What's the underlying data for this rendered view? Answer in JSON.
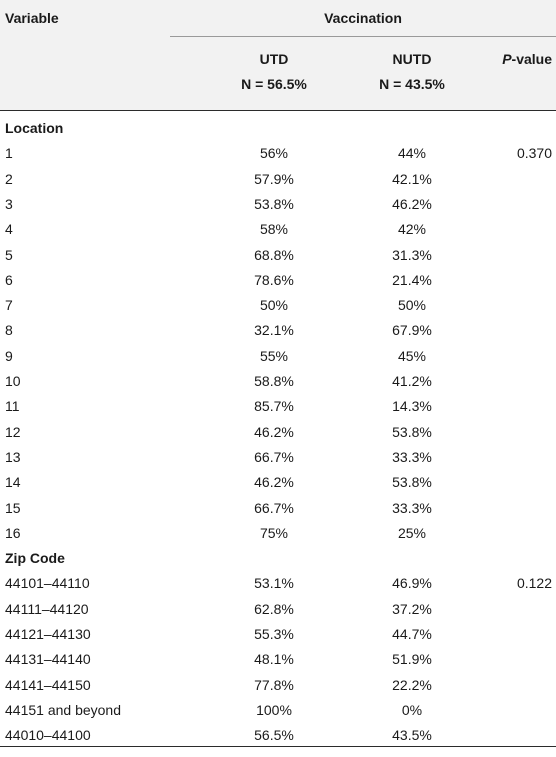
{
  "header": {
    "variable": "Variable",
    "vaccination": "Vaccination",
    "utd_label": "UTD",
    "utd_n": "N = 56.5%",
    "nutd_label": "NUTD",
    "nutd_n": "N = 43.5%",
    "p_italic": "P",
    "p_rest": "-value"
  },
  "sections": [
    {
      "title": "Location",
      "rows": [
        {
          "label": "1",
          "utd": "56%",
          "nutd": "44%",
          "p": "0.370"
        },
        {
          "label": "2",
          "utd": "57.9%",
          "nutd": "42.1%",
          "p": ""
        },
        {
          "label": "3",
          "utd": "53.8%",
          "nutd": "46.2%",
          "p": ""
        },
        {
          "label": "4",
          "utd": "58%",
          "nutd": "42%",
          "p": ""
        },
        {
          "label": "5",
          "utd": "68.8%",
          "nutd": "31.3%",
          "p": ""
        },
        {
          "label": "6",
          "utd": "78.6%",
          "nutd": "21.4%",
          "p": ""
        },
        {
          "label": "7",
          "utd": "50%",
          "nutd": "50%",
          "p": ""
        },
        {
          "label": "8",
          "utd": "32.1%",
          "nutd": "67.9%",
          "p": ""
        },
        {
          "label": "9",
          "utd": "55%",
          "nutd": "45%",
          "p": ""
        },
        {
          "label": "10",
          "utd": "58.8%",
          "nutd": "41.2%",
          "p": ""
        },
        {
          "label": "11",
          "utd": "85.7%",
          "nutd": "14.3%",
          "p": ""
        },
        {
          "label": "12",
          "utd": "46.2%",
          "nutd": "53.8%",
          "p": ""
        },
        {
          "label": "13",
          "utd": "66.7%",
          "nutd": "33.3%",
          "p": ""
        },
        {
          "label": "14",
          "utd": "46.2%",
          "nutd": "53.8%",
          "p": ""
        },
        {
          "label": "15",
          "utd": "66.7%",
          "nutd": "33.3%",
          "p": ""
        },
        {
          "label": "16",
          "utd": "75%",
          "nutd": "25%",
          "p": ""
        }
      ]
    },
    {
      "title": "Zip Code",
      "rows": [
        {
          "label": "44101–44110",
          "utd": "53.1%",
          "nutd": "46.9%",
          "p": "0.122"
        },
        {
          "label": "44111–44120",
          "utd": "62.8%",
          "nutd": "37.2%",
          "p": ""
        },
        {
          "label": "44121–44130",
          "utd": "55.3%",
          "nutd": "44.7%",
          "p": ""
        },
        {
          "label": "44131–44140",
          "utd": "48.1%",
          "nutd": "51.9%",
          "p": ""
        },
        {
          "label": "44141–44150",
          "utd": "77.8%",
          "nutd": "22.2%",
          "p": ""
        },
        {
          "label": "44151 and beyond",
          "utd": "100%",
          "nutd": "0%",
          "p": ""
        },
        {
          "label": "44010–44100",
          "utd": "56.5%",
          "nutd": "43.5%",
          "p": ""
        }
      ]
    }
  ]
}
